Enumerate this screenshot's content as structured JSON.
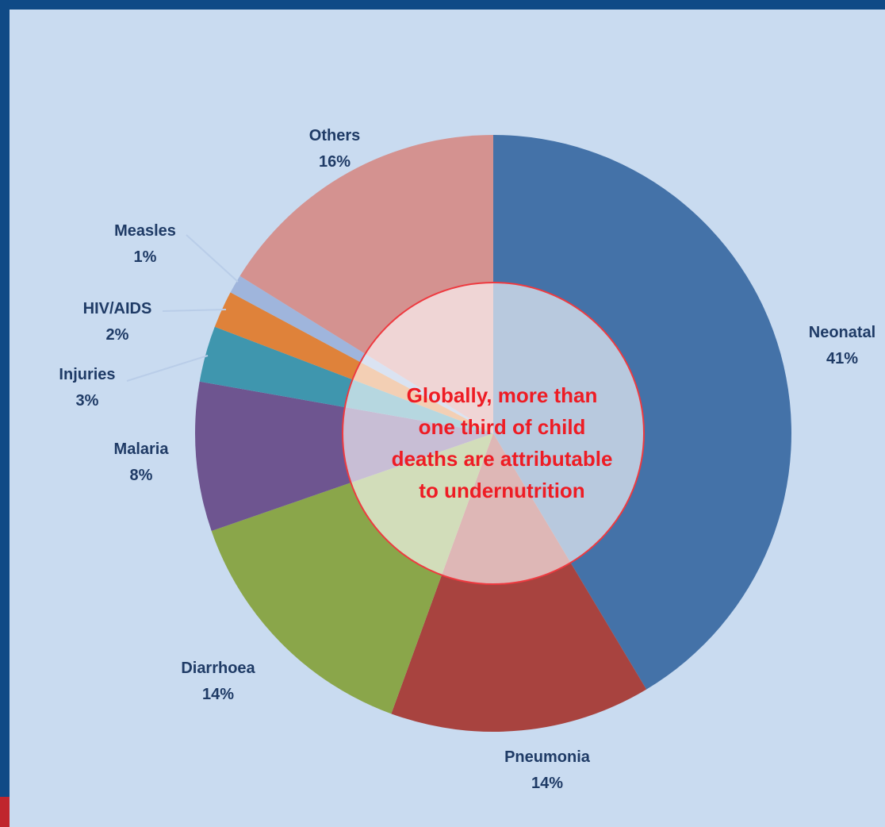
{
  "chart_data": {
    "type": "pie",
    "subtype": "donut",
    "categories": [
      "Neonatal",
      "Pneumonia",
      "Diarrhoea",
      "Malaria",
      "Injuries",
      "HIV/AIDS",
      "Measles",
      "Others"
    ],
    "values": [
      41,
      14,
      14,
      8,
      3,
      2,
      1,
      16
    ],
    "value_labels": [
      "41%",
      "14%",
      "14%",
      "8%",
      "3%",
      "2%",
      "1%",
      "16%"
    ],
    "colors": [
      "#4472a8",
      "#a8433f",
      "#8aa64a",
      "#6e5590",
      "#3f96ae",
      "#df823a",
      "#9fb5dc",
      "#d49290"
    ],
    "center_text_lines": [
      "Globally, more than",
      "one third of child",
      "deaths are attributable",
      "to undernutrition"
    ],
    "center_color": "#ee1c24",
    "label_color": "#1f3b66",
    "legend": "none"
  }
}
